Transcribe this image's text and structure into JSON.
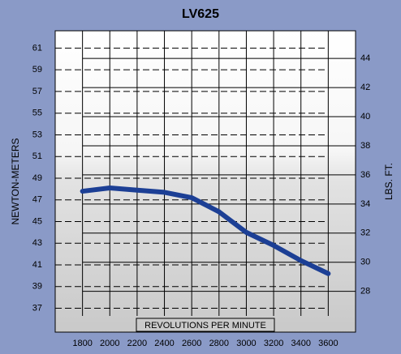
{
  "chart_data": {
    "type": "line",
    "title": "LV625",
    "y_label": "NEWTON-METERS",
    "y2_label": "LBS. FT.",
    "x_label": "REVOLUTIONS PER MINUTE",
    "x": [
      1800,
      2000,
      2200,
      2400,
      2600,
      2800,
      3000,
      3200,
      3400,
      3600
    ],
    "series": [
      {
        "name": "LV625",
        "color": "#1c3f95",
        "values": [
          47.8,
          48.1,
          47.9,
          47.7,
          47.2,
          45.9,
          44.0,
          42.8,
          41.4,
          40.2
        ]
      }
    ],
    "xlim": [
      1600,
      3800
    ],
    "xticks": [
      1800,
      2000,
      2200,
      2400,
      2600,
      2800,
      3000,
      3200,
      3400,
      3600
    ],
    "ylim": [
      34.8,
      62.6
    ],
    "yticks": [
      37,
      39,
      41,
      43,
      45,
      47,
      49,
      51,
      53,
      55,
      57,
      59,
      61
    ],
    "y2lim": [
      25.2,
      45.9
    ],
    "y2ticks": [
      28,
      30,
      32,
      34,
      36,
      38,
      40,
      42,
      44
    ],
    "grid": true
  }
}
